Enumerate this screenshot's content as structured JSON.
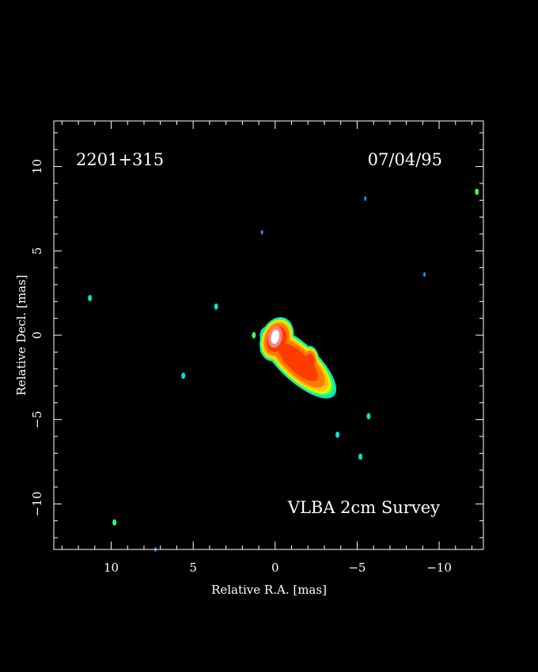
{
  "chart_data": {
    "type": "heatmap",
    "source_name": "2201+315",
    "date": "07/04/95",
    "survey": "VLBA 2cm Survey",
    "xlabel": "Relative R.A. [mas]",
    "ylabel": "Relative Decl. [mas]",
    "xlim": [
      13.5,
      -12.7
    ],
    "ylim": [
      -12.7,
      12.7
    ],
    "x_ticks": [
      10,
      5,
      0,
      -5,
      -10
    ],
    "x_tick_labels": [
      "10",
      "5",
      "0",
      "−5",
      "−10"
    ],
    "y_ticks": [
      10,
      5,
      0,
      -5,
      -10
    ],
    "y_tick_labels": [
      "10",
      "5",
      "0",
      "−5",
      "−10"
    ],
    "grid": false,
    "colormap": [
      "#0a1fff",
      "#1e90ff",
      "#00e5d0",
      "#3cff5a",
      "#d8ff00",
      "#ffc400",
      "#ff7a00",
      "#ff3b00",
      "#ff8080",
      "#ffffff"
    ],
    "core": {
      "ra": 0.0,
      "dec": 0.0,
      "components": [
        {
          "ra": -1.4,
          "dec": -1.6,
          "level": 6
        },
        {
          "ra": 0.0,
          "dec": -0.1,
          "level": 9
        }
      ]
    },
    "noise_spots": [
      {
        "ra": 11.3,
        "dec": 2.2,
        "level": 1
      },
      {
        "ra": 9.8,
        "dec": -11.1,
        "level": 2
      },
      {
        "ra": 7.3,
        "dec": -12.7,
        "level": 0
      },
      {
        "ra": 5.6,
        "dec": -2.4,
        "level": 1
      },
      {
        "ra": 3.6,
        "dec": 1.7,
        "level": 1
      },
      {
        "ra": 1.3,
        "dec": 0.0,
        "level": 2
      },
      {
        "ra": 0.8,
        "dec": 6.1,
        "level": 0
      },
      {
        "ra": 0.8,
        "dec": -0.9,
        "level": 1
      },
      {
        "ra": -3.8,
        "dec": -5.9,
        "level": 1
      },
      {
        "ra": -5.2,
        "dec": -7.2,
        "level": 1
      },
      {
        "ra": -5.5,
        "dec": 8.1,
        "level": 0
      },
      {
        "ra": -5.7,
        "dec": -4.8,
        "level": 1
      },
      {
        "ra": -9.1,
        "dec": 3.6,
        "level": 0
      },
      {
        "ra": -12.3,
        "dec": 8.5,
        "level": 2
      }
    ]
  }
}
